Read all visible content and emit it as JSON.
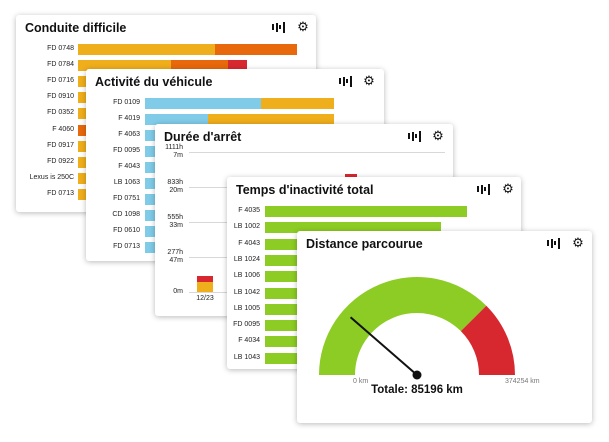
{
  "colors": {
    "blue": "#7fcbe8",
    "orange": "#efae1c",
    "darkorange": "#e8680c",
    "red": "#d8282f",
    "green": "#8ccc24"
  },
  "icons": {
    "chart": "bar-chart-icon",
    "settings": "gear-icon",
    "needle": "gauge-needle"
  },
  "card1": {
    "title": "Conduite difficile",
    "rows": [
      {
        "label": "FD 0748",
        "v": [
          0.6,
          0.36,
          0
        ]
      },
      {
        "label": "FD 0784",
        "v": [
          0.41,
          0.25,
          0.08
        ]
      },
      {
        "label": "FD 0716",
        "v": [
          0.1,
          0,
          0
        ]
      },
      {
        "label": "FD 0910",
        "v": [
          0.08,
          0,
          0
        ]
      },
      {
        "label": "FD 0352",
        "v": [
          0.07,
          0,
          0
        ]
      },
      {
        "label": "F 4060",
        "v": [
          0,
          0.06,
          0
        ]
      },
      {
        "label": "FD 0917",
        "v": [
          0.06,
          0,
          0
        ]
      },
      {
        "label": "FD 0922",
        "v": [
          0.06,
          0,
          0
        ]
      },
      {
        "label": "Lexus is 250C",
        "v": [
          0.05,
          0,
          0
        ]
      },
      {
        "label": "FD 0713",
        "v": [
          0.05,
          0,
          0
        ]
      }
    ]
  },
  "card2": {
    "title": "Activité du véhicule",
    "rows": [
      {
        "label": "FD 0109",
        "v": [
          0.55,
          0.35
        ]
      },
      {
        "label": "F 4019",
        "v": [
          0.3,
          0.6
        ]
      },
      {
        "label": "F 4063",
        "v": [
          0.08,
          0
        ]
      },
      {
        "label": "FD 0095",
        "v": [
          0.07,
          0
        ]
      },
      {
        "label": "F 4043",
        "v": [
          0.07,
          0
        ]
      },
      {
        "label": "LB 1063",
        "v": [
          0.06,
          0
        ]
      },
      {
        "label": "FD 0751",
        "v": [
          0.06,
          0
        ]
      },
      {
        "label": "CD 1098",
        "v": [
          0.06,
          0
        ]
      },
      {
        "label": "FD 0610",
        "v": [
          0.06,
          0
        ]
      },
      {
        "label": "FD 0713",
        "v": [
          0.06,
          0
        ]
      }
    ]
  },
  "card3": {
    "title": "Durée d'arrêt",
    "yticks": [
      {
        "l1": "1111h",
        "l2": "7m",
        "frac": 1.0
      },
      {
        "l1": "833h",
        "l2": "20m",
        "frac": 0.75
      },
      {
        "l1": "555h",
        "l2": "33m",
        "frac": 0.5
      },
      {
        "l1": "277h",
        "l2": "47m",
        "frac": 0.25
      },
      {
        "l1": "0m",
        "l2": "",
        "frac": 0
      }
    ],
    "bar": {
      "label": "12/23",
      "orange_frac": 0.07,
      "red_frac": 0.045
    }
  },
  "card4": {
    "title": "Temps d'inactivité total",
    "rows": [
      {
        "label": "F 4035",
        "v": 0.92
      },
      {
        "label": "LB 1002",
        "v": 0.8
      },
      {
        "label": "F 4043",
        "v": 0.3
      },
      {
        "label": "LB 1024",
        "v": 0.3
      },
      {
        "label": "LB 1006",
        "v": 0.3
      },
      {
        "label": "LB 1042",
        "v": 0.3
      },
      {
        "label": "LB 1005",
        "v": 0.3
      },
      {
        "label": "FD 0095",
        "v": 0.3
      },
      {
        "label": "F 4034",
        "v": 0.3
      },
      {
        "label": "LB 1043",
        "v": 0.3
      }
    ]
  },
  "card5": {
    "title": "Distance parcourue",
    "min_label": "0 km",
    "max_label": "374254 km",
    "total_text": "Totale: 85196 km",
    "value": 85196,
    "max": 374254,
    "red_from": 280690
  }
}
